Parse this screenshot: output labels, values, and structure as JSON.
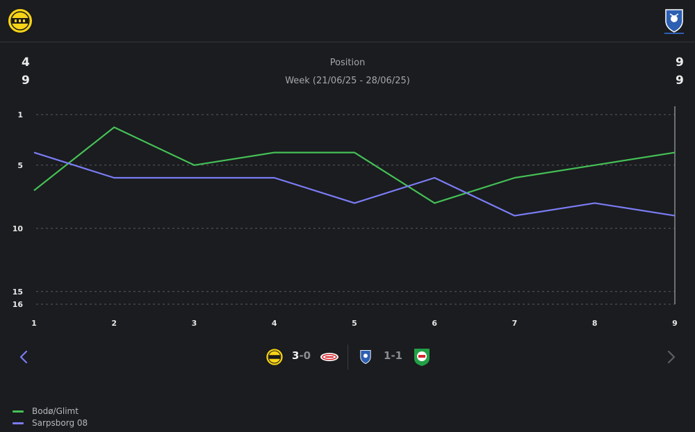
{
  "header": {
    "home_logo": "bodo-glimt-crest-icon",
    "away_logo": "sarpsborg-08-crest-icon"
  },
  "stats": {
    "home_position": "4",
    "home_week": "9",
    "away_position": "9",
    "away_week": "9"
  },
  "chart_data": {
    "type": "line",
    "title": "Position",
    "subtitle": "Week (21/06/25 - 28/06/25)",
    "x": [
      1,
      2,
      3,
      4,
      5,
      6,
      7,
      8,
      9
    ],
    "y_ticks": [
      1,
      5,
      10,
      15,
      16
    ],
    "ylim": [
      16,
      1
    ],
    "y_inverted": true,
    "grid": "dashed horizontal at y ticks",
    "series": [
      {
        "name": "Bodø/Glimt",
        "color": "#45c156",
        "values": [
          7,
          2,
          5,
          4,
          4,
          8,
          6,
          5,
          4
        ]
      },
      {
        "name": "Sarpsborg 08",
        "color": "#7c7cf6",
        "values": [
          4,
          6,
          6,
          6,
          8,
          6,
          9,
          8,
          9
        ]
      }
    ],
    "cursor_x": 9,
    "legend_position": "bottom-left"
  },
  "matches": {
    "home_match": {
      "score_home": "3",
      "score_away": "0"
    },
    "away_match": {
      "score_home": "1",
      "score_away": "1"
    }
  },
  "nav": {
    "prev": "chevron-left-icon",
    "next": "chevron-right-icon"
  },
  "colors": {
    "background": "#1a1c1f",
    "grid": "#5a5d61",
    "accent_prev": "#7c7cf6"
  }
}
